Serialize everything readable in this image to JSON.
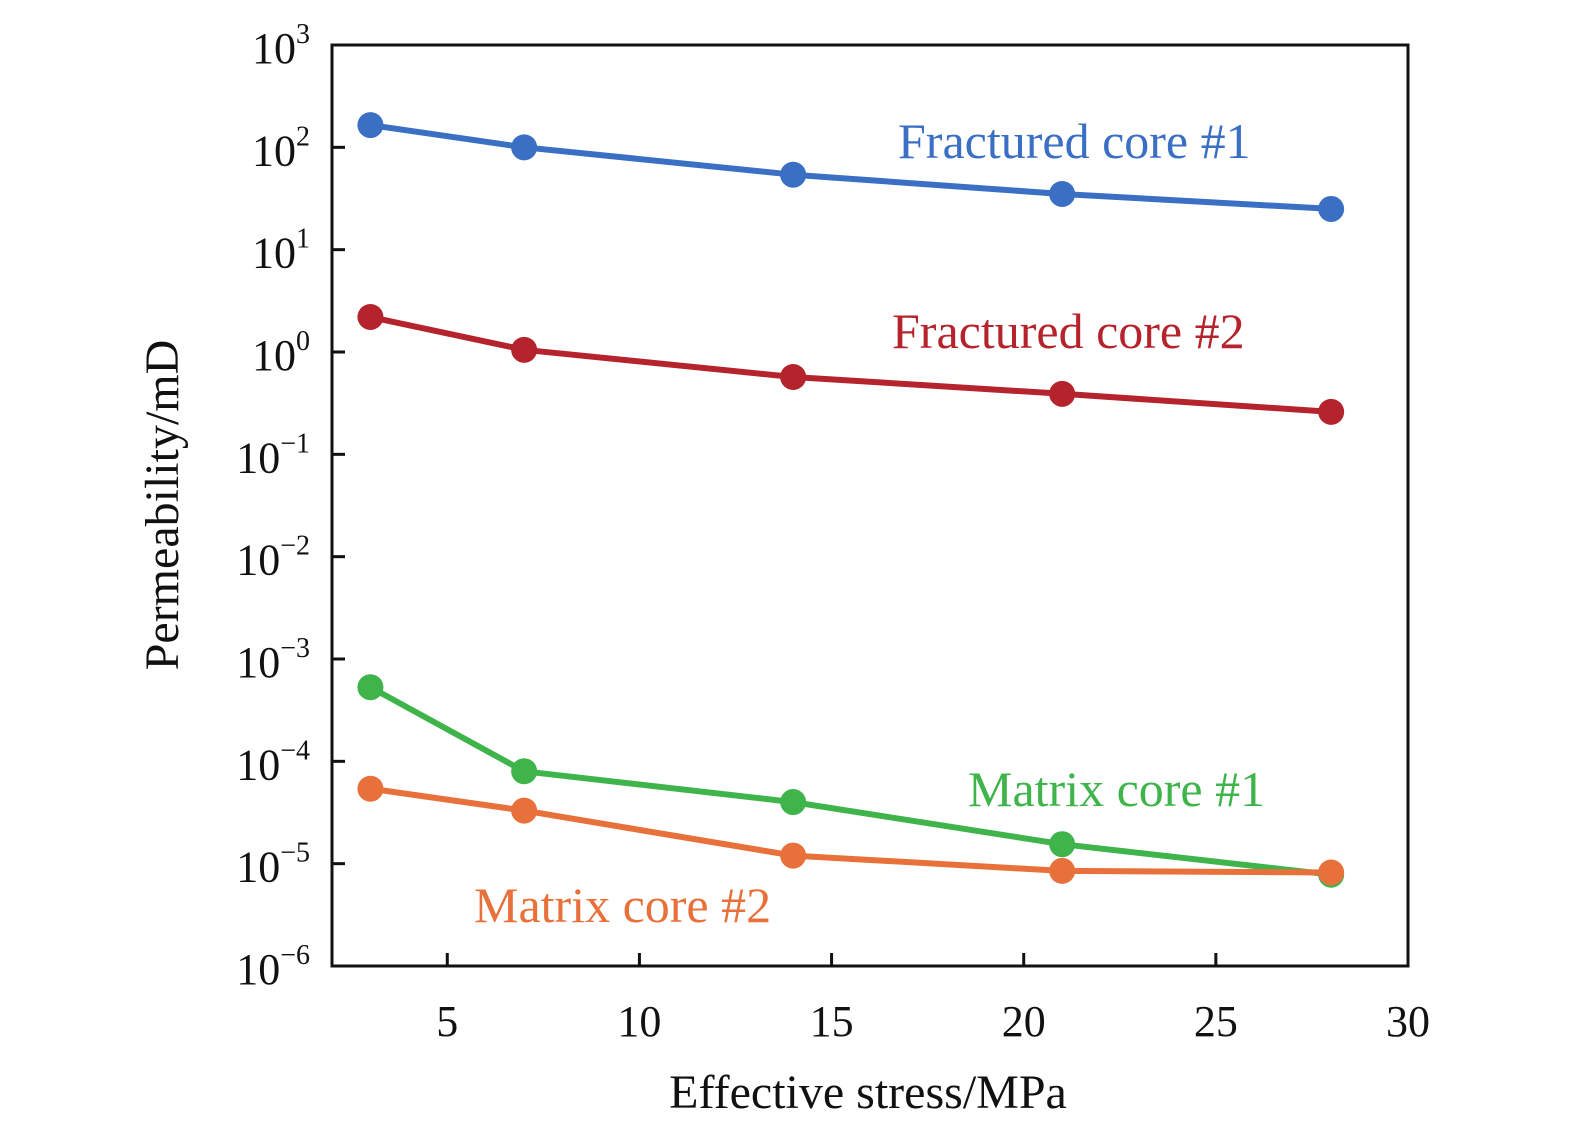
{
  "chart_data": {
    "type": "line",
    "xlabel": "Effective stress/MPa",
    "ylabel": "Permeability/mD",
    "xlim": [
      2,
      30
    ],
    "ylim": [
      1e-06,
      1000
    ],
    "y_scale": "log",
    "grid": false,
    "x_ticks": [
      5,
      10,
      15,
      20,
      25,
      30
    ],
    "x_tick_labels": [
      "5",
      "10",
      "15",
      "20",
      "25",
      "30"
    ],
    "y_ticks": [
      {
        "base": "10",
        "exp": "3"
      },
      {
        "base": "10",
        "exp": "2"
      },
      {
        "base": "10",
        "exp": "1"
      },
      {
        "base": "10",
        "exp": "0"
      },
      {
        "base": "10",
        "exp": "−1"
      },
      {
        "base": "10",
        "exp": "−2"
      },
      {
        "base": "10",
        "exp": "−3"
      },
      {
        "base": "10",
        "exp": "−4"
      },
      {
        "base": "10",
        "exp": "−5"
      },
      {
        "base": "10",
        "exp": "−6"
      }
    ],
    "x": [
      3,
      7,
      14,
      21,
      28
    ],
    "series": [
      {
        "name": "Fractured core #1",
        "color": "#3a6fc4",
        "values": [
          165,
          100,
          54,
          35,
          25
        ]
      },
      {
        "name": "Fractured core #2",
        "color": "#b5242c",
        "values": [
          2.2,
          1.05,
          0.57,
          0.39,
          0.26
        ]
      },
      {
        "name": "Matrix core #1",
        "color": "#3eb44b",
        "values": [
          0.00053,
          8e-05,
          4e-05,
          1.55e-05,
          7.8e-06
        ]
      },
      {
        "name": "Matrix core #2",
        "color": "#e8703a",
        "values": [
          5.4e-05,
          3.3e-05,
          1.2e-05,
          8.5e-06,
          8.2e-06
        ]
      }
    ]
  }
}
